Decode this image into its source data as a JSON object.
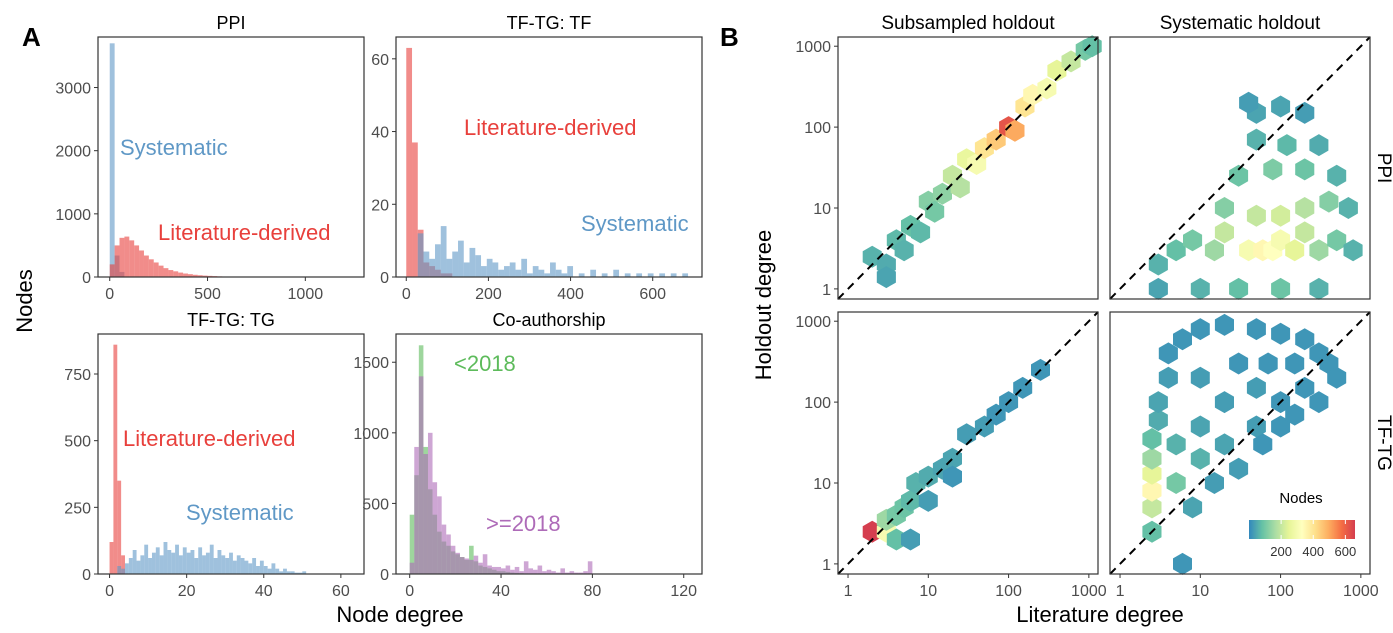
{
  "panel_labels": {
    "a": "A",
    "b": "B"
  },
  "shared_labels": {
    "hist_ylabel": "Nodes",
    "hist_xlabel": "Node degree",
    "hex_ylabel": "Holdout degree",
    "hex_xlabel": "Literature degree"
  },
  "colors": {
    "literature": "#E8403C",
    "systematic": "#5F98C6",
    "before2018": "#5DBB5B",
    "after2018": "#AE6BB8",
    "hex_low": "#2E7FB8",
    "hex_high": "#D53E4F"
  },
  "chart_data": [
    {
      "type": "bar",
      "title": "PPI",
      "ylim": [
        0,
        3800
      ],
      "xlim": [
        -60,
        1300
      ],
      "yticks": [
        0,
        1000,
        2000,
        3000
      ],
      "xticks": [
        0,
        500,
        1000
      ],
      "series": [
        {
          "name": "Systematic",
          "bin_width": 25,
          "x": [
            0,
            25,
            50
          ],
          "values": [
            3700,
            340,
            80
          ]
        },
        {
          "name": "Literature-derived",
          "bin_width": 25,
          "x": [
            0,
            25,
            50,
            75,
            100,
            125,
            150,
            175,
            200,
            225,
            250,
            275,
            300,
            325,
            350,
            375,
            400,
            425,
            450,
            475,
            500,
            525,
            550,
            575,
            600,
            625,
            650,
            675,
            700
          ],
          "values": [
            200,
            500,
            620,
            640,
            580,
            500,
            420,
            340,
            280,
            230,
            180,
            140,
            110,
            90,
            70,
            55,
            45,
            35,
            28,
            22,
            18,
            14,
            10,
            8,
            6,
            5,
            3,
            2,
            2
          ]
        }
      ],
      "annotations": [
        {
          "text": "Systematic",
          "series": "Systematic"
        },
        {
          "text": "Literature-derived",
          "series": "Literature-derived"
        }
      ]
    },
    {
      "type": "bar",
      "title": "TF-TG: TF",
      "ylim": [
        0,
        66
      ],
      "xlim": [
        -25,
        720
      ],
      "yticks": [
        0,
        20,
        40,
        60
      ],
      "xticks": [
        0,
        200,
        400,
        600
      ],
      "series": [
        {
          "name": "Literature-derived",
          "bin_width": 14,
          "x": [
            0,
            14,
            28,
            42,
            56,
            70,
            84,
            98
          ],
          "values": [
            63,
            37,
            13,
            4,
            3,
            2,
            1,
            1
          ]
        },
        {
          "name": "Systematic",
          "bin_width": 14,
          "x": [
            28,
            42,
            56,
            70,
            84,
            98,
            112,
            126,
            140,
            154,
            168,
            182,
            196,
            210,
            224,
            238,
            252,
            266,
            280,
            294,
            308,
            322,
            336,
            350,
            364,
            378,
            392,
            420,
            448,
            476,
            504,
            532,
            560,
            588,
            616,
            644,
            672
          ],
          "values": [
            12,
            7,
            5,
            9,
            14,
            5,
            7,
            10,
            4,
            8,
            6,
            3,
            5,
            4,
            2,
            3,
            4,
            2,
            5,
            1,
            3,
            2,
            1,
            4,
            2,
            1,
            3,
            1,
            2,
            1,
            2,
            1,
            1,
            1,
            1,
            1,
            1
          ]
        }
      ],
      "annotations": [
        {
          "text": "Literature-derived",
          "series": "Literature-derived"
        },
        {
          "text": "Systematic",
          "series": "Systematic"
        }
      ]
    },
    {
      "type": "bar",
      "title": "TF-TG: TG",
      "ylim": [
        0,
        900
      ],
      "xlim": [
        -3,
        66
      ],
      "yticks": [
        0,
        250,
        500,
        750
      ],
      "xticks": [
        0,
        20,
        40,
        60
      ],
      "series": [
        {
          "name": "Literature-derived",
          "bin_width": 1,
          "x": [
            0,
            1,
            2,
            3
          ],
          "values": [
            120,
            860,
            350,
            70
          ]
        },
        {
          "name": "Systematic",
          "bin_width": 1,
          "x": [
            2,
            3,
            4,
            5,
            6,
            7,
            8,
            9,
            10,
            11,
            12,
            13,
            14,
            15,
            16,
            17,
            18,
            19,
            20,
            21,
            22,
            23,
            24,
            25,
            26,
            27,
            28,
            29,
            30,
            31,
            32,
            33,
            34,
            35,
            36,
            37,
            38,
            39,
            40,
            41,
            42,
            43,
            44,
            45,
            46,
            47,
            48,
            49,
            50
          ],
          "values": [
            30,
            20,
            40,
            60,
            90,
            50,
            70,
            110,
            60,
            80,
            100,
            70,
            120,
            90,
            80,
            110,
            70,
            100,
            80,
            90,
            60,
            100,
            70,
            80,
            110,
            60,
            90,
            70,
            60,
            80,
            50,
            70,
            60,
            50,
            40,
            60,
            30,
            50,
            30,
            20,
            40,
            20,
            10,
            20,
            10,
            10,
            5,
            5,
            10
          ]
        }
      ],
      "annotations": [
        {
          "text": "Literature-derived",
          "series": "Literature-derived"
        },
        {
          "text": "Systematic",
          "series": "Systematic"
        }
      ]
    },
    {
      "type": "bar",
      "title": "Co-authorship",
      "ylim": [
        0,
        1700
      ],
      "xlim": [
        -6,
        128
      ],
      "yticks": [
        0,
        500,
        1000,
        1500
      ],
      "xticks": [
        0,
        40,
        80,
        120
      ],
      "series": [
        {
          "name": "<2018",
          "bin_width": 2,
          "x": [
            0,
            2,
            4,
            6,
            8,
            10,
            12,
            14,
            16,
            18,
            20,
            22,
            24,
            26,
            28,
            30,
            32,
            34,
            36,
            38,
            40,
            42,
            44,
            46,
            48,
            50,
            52,
            54
          ],
          "values": [
            420,
            700,
            1620,
            900,
            600,
            420,
            300,
            230,
            200,
            160,
            140,
            120,
            100,
            200,
            90,
            60,
            50,
            40,
            30,
            20,
            20,
            15,
            10,
            8,
            6,
            4,
            3,
            2
          ]
        },
        {
          "name": ">=2018",
          "bin_width": 2,
          "x": [
            0,
            2,
            4,
            6,
            8,
            10,
            12,
            14,
            16,
            18,
            20,
            22,
            24,
            26,
            28,
            30,
            32,
            34,
            36,
            38,
            40,
            42,
            44,
            46,
            48,
            50,
            52,
            54,
            56,
            58,
            60,
            62,
            64,
            66,
            68,
            70,
            72,
            74,
            76,
            78
          ],
          "values": [
            80,
            900,
            1400,
            850,
            1000,
            650,
            550,
            350,
            280,
            200,
            150,
            120,
            110,
            100,
            130,
            80,
            140,
            60,
            50,
            50,
            40,
            60,
            30,
            50,
            20,
            90,
            40,
            30,
            60,
            20,
            30,
            20,
            10,
            40,
            10,
            20,
            10,
            10,
            20,
            90
          ]
        }
      ],
      "annotations": [
        {
          "text": "<2018",
          "series": "<2018"
        },
        {
          "text": ">=2018",
          "series": ">=2018"
        }
      ]
    },
    {
      "type": "heatmap",
      "title": "Subsampled holdout",
      "row_label": "PPI",
      "scale": "log10",
      "xlim": [
        0.75,
        1300
      ],
      "ylim": [
        0.75,
        1300
      ],
      "xticks": [
        1,
        10,
        100,
        1000
      ],
      "yticks": [
        1,
        10,
        100,
        1000
      ],
      "reference_line": "y = x",
      "cells": [
        [
          2,
          2.5,
          60
        ],
        [
          3,
          2,
          50
        ],
        [
          3,
          1.4,
          40
        ],
        [
          4,
          4,
          70
        ],
        [
          5,
          3,
          60
        ],
        [
          6,
          6,
          80
        ],
        [
          8,
          5,
          70
        ],
        [
          10,
          12,
          120
        ],
        [
          12,
          9,
          100
        ],
        [
          15,
          15,
          130
        ],
        [
          20,
          25,
          200
        ],
        [
          25,
          18,
          180
        ],
        [
          30,
          40,
          260
        ],
        [
          40,
          35,
          300
        ],
        [
          50,
          55,
          400
        ],
        [
          70,
          70,
          450
        ],
        [
          100,
          100,
          620
        ],
        [
          120,
          90,
          500
        ],
        [
          160,
          180,
          400
        ],
        [
          200,
          250,
          350
        ],
        [
          300,
          300,
          300
        ],
        [
          400,
          500,
          250
        ],
        [
          600,
          650,
          200
        ],
        [
          900,
          900,
          100
        ],
        [
          1100,
          1000,
          80
        ]
      ]
    },
    {
      "type": "heatmap",
      "title": "Systematic holdout",
      "row_label": "PPI",
      "scale": "log10",
      "xlim": [
        0.75,
        1300
      ],
      "ylim": [
        0.75,
        1300
      ],
      "xticks": [
        1,
        10,
        100,
        1000
      ],
      "yticks": [
        1,
        10,
        100,
        1000
      ],
      "reference_line": "y = x",
      "cells": [
        [
          3,
          2,
          60
        ],
        [
          5,
          3,
          80
        ],
        [
          8,
          4,
          100
        ],
        [
          15,
          3,
          150
        ],
        [
          20,
          5,
          200
        ],
        [
          40,
          3,
          300
        ],
        [
          60,
          3,
          350
        ],
        [
          80,
          3,
          330
        ],
        [
          100,
          4,
          300
        ],
        [
          150,
          3,
          250
        ],
        [
          200,
          5,
          200
        ],
        [
          300,
          3,
          150
        ],
        [
          500,
          4,
          100
        ],
        [
          800,
          3,
          60
        ],
        [
          20,
          10,
          120
        ],
        [
          50,
          8,
          200
        ],
        [
          100,
          8,
          220
        ],
        [
          200,
          10,
          180
        ],
        [
          400,
          12,
          120
        ],
        [
          700,
          10,
          60
        ],
        [
          30,
          25,
          90
        ],
        [
          80,
          30,
          110
        ],
        [
          200,
          30,
          90
        ],
        [
          500,
          25,
          60
        ],
        [
          50,
          70,
          60
        ],
        [
          120,
          60,
          70
        ],
        [
          300,
          60,
          50
        ],
        [
          100,
          180,
          40
        ],
        [
          50,
          150,
          40
        ],
        [
          200,
          150,
          30
        ],
        [
          40,
          200,
          30
        ],
        [
          3,
          1,
          40
        ],
        [
          10,
          1,
          60
        ],
        [
          30,
          1,
          80
        ],
        [
          100,
          1,
          90
        ],
        [
          300,
          1,
          60
        ]
      ]
    },
    {
      "type": "heatmap",
      "title": "",
      "row_label": "TF-TG",
      "scale": "log10",
      "xlim": [
        0.75,
        1300
      ],
      "ylim": [
        0.75,
        1300
      ],
      "xticks": [
        1,
        10,
        100,
        1000
      ],
      "yticks": [
        1,
        10,
        100,
        1000
      ],
      "reference_line": "y = x",
      "cells": [
        [
          2,
          2.5,
          660
        ],
        [
          3,
          2.5,
          300
        ],
        [
          3,
          3.5,
          150
        ],
        [
          4,
          4,
          100
        ],
        [
          5,
          5,
          90
        ],
        [
          4,
          2,
          80
        ],
        [
          6,
          6,
          70
        ],
        [
          7,
          10,
          60
        ],
        [
          10,
          12,
          50
        ],
        [
          15,
          15,
          40
        ],
        [
          20,
          20,
          40
        ],
        [
          30,
          40,
          30
        ],
        [
          50,
          50,
          30
        ],
        [
          70,
          70,
          20
        ],
        [
          100,
          100,
          20
        ],
        [
          150,
          150,
          20
        ],
        [
          250,
          250,
          20
        ],
        [
          6,
          2,
          30
        ],
        [
          10,
          6,
          30
        ],
        [
          20,
          12,
          20
        ]
      ]
    },
    {
      "type": "heatmap",
      "title": "",
      "row_label": "TF-TG",
      "scale": "log10",
      "xlim": [
        0.75,
        1300
      ],
      "ylim": [
        0.75,
        1300
      ],
      "xticks": [
        1,
        10,
        100,
        1000
      ],
      "yticks": [
        1,
        10,
        100,
        1000
      ],
      "reference_line": "y = x",
      "cells": [
        [
          2.5,
          2.5,
          80
        ],
        [
          2.5,
          5,
          200
        ],
        [
          2.5,
          8,
          350
        ],
        [
          2.5,
          13,
          250
        ],
        [
          2.5,
          20,
          150
        ],
        [
          2.5,
          35,
          80
        ],
        [
          3,
          60,
          50
        ],
        [
          3,
          100,
          40
        ],
        [
          4,
          200,
          30
        ],
        [
          4,
          400,
          20
        ],
        [
          6,
          600,
          20
        ],
        [
          10,
          800,
          20
        ],
        [
          20,
          900,
          20
        ],
        [
          50,
          800,
          20
        ],
        [
          100,
          700,
          20
        ],
        [
          200,
          600,
          20
        ],
        [
          300,
          400,
          20
        ],
        [
          400,
          300,
          20
        ],
        [
          500,
          200,
          20
        ],
        [
          5,
          30,
          60
        ],
        [
          5,
          10,
          100
        ],
        [
          10,
          20,
          60
        ],
        [
          10,
          50,
          40
        ],
        [
          20,
          30,
          40
        ],
        [
          20,
          100,
          30
        ],
        [
          50,
          50,
          30
        ],
        [
          50,
          150,
          30
        ],
        [
          100,
          100,
          20
        ],
        [
          100,
          50,
          20
        ],
        [
          200,
          150,
          20
        ],
        [
          10,
          200,
          30
        ],
        [
          30,
          300,
          20
        ],
        [
          70,
          300,
          20
        ],
        [
          150,
          300,
          20
        ],
        [
          300,
          100,
          20
        ],
        [
          6,
          1,
          20
        ],
        [
          8,
          5,
          40
        ],
        [
          15,
          10,
          30
        ],
        [
          30,
          15,
          30
        ],
        [
          60,
          30,
          20
        ],
        [
          150,
          70,
          20
        ]
      ]
    }
  ],
  "legend": {
    "title": "Nodes",
    "ticks": [
      200,
      400,
      600
    ],
    "range": [
      0,
      660
    ]
  }
}
